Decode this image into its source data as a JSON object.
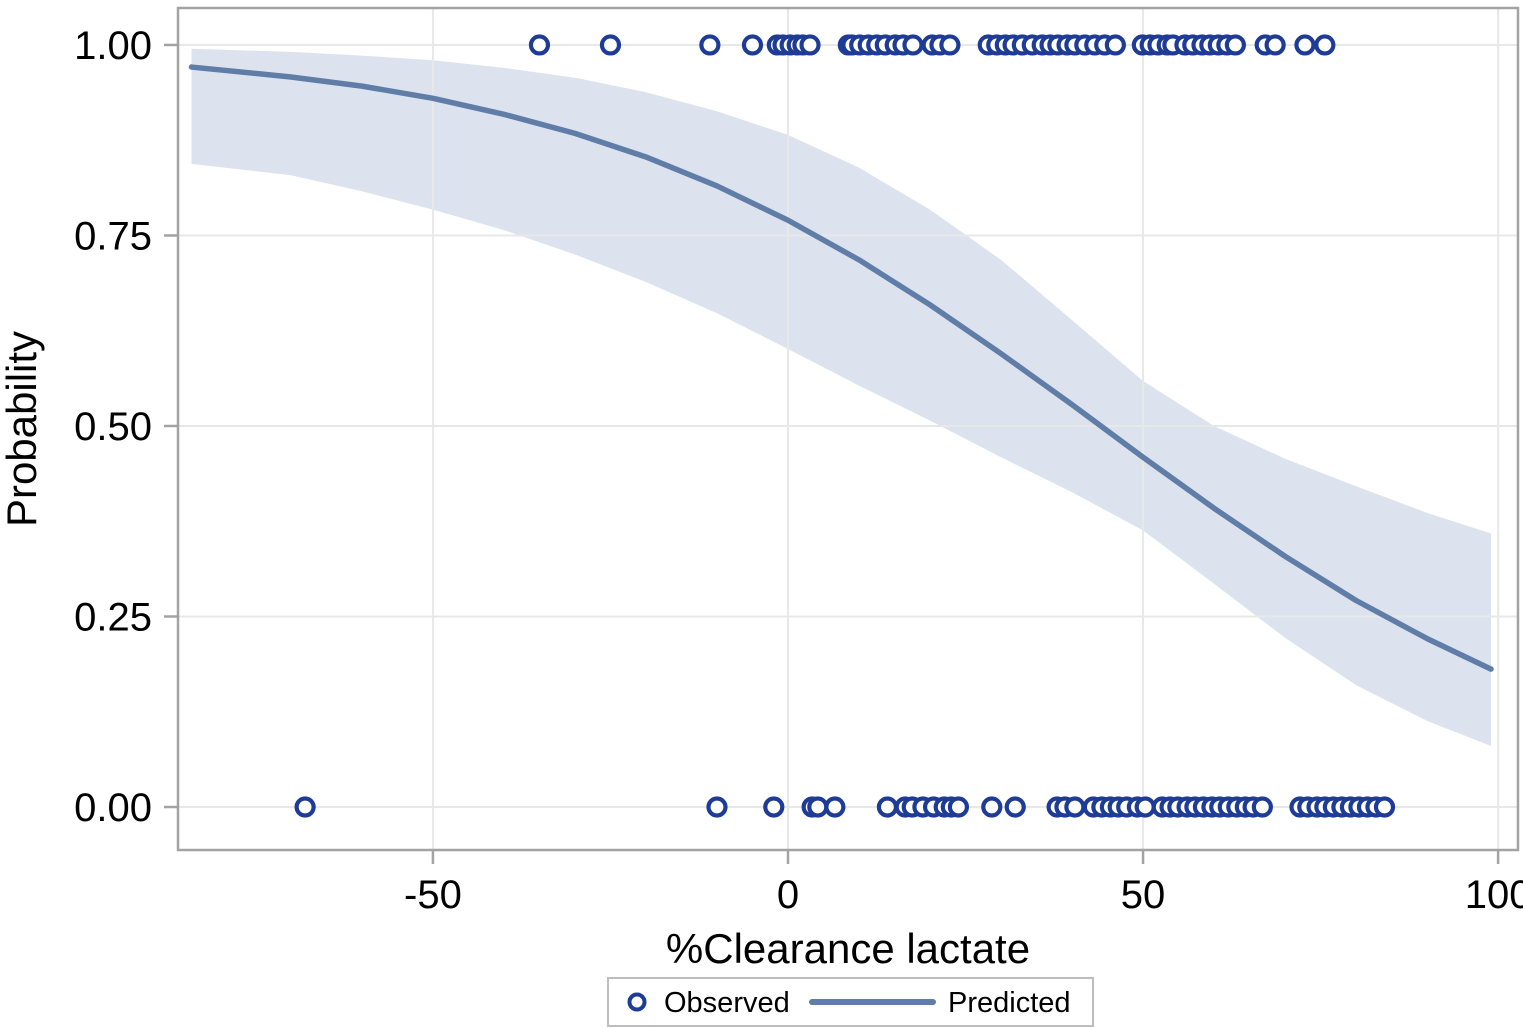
{
  "chart_data": {
    "type": "scatter",
    "title": "",
    "xlabel": "%Clearance lactate",
    "ylabel": "Probability",
    "xlim": [
      -85.9,
      102.8
    ],
    "ylim": [
      -0.0564,
      1.0485
    ],
    "x_tick_values": [
      -50,
      0,
      50,
      100
    ],
    "x_tick_labels": [
      "-50",
      "0",
      "50",
      "100"
    ],
    "y_tick_values": [
      0,
      0.25,
      0.5,
      0.75,
      1.0
    ],
    "y_tick_labels": [
      "0.00",
      "0.25",
      "0.50",
      "0.75",
      "1.00"
    ],
    "grid": true,
    "legend_position": "bottom-center",
    "legend": [
      {
        "label": "Observed",
        "type": "marker"
      },
      {
        "label": "Predicted",
        "type": "line"
      }
    ],
    "series": [
      {
        "name": "Observed (event = 1)",
        "type": "scatter",
        "y_value": 1.0,
        "x": [
          -35,
          -25,
          -11,
          -5,
          -1.5,
          -0.7,
          0.3,
          1.3,
          2.1,
          3.1,
          8.5,
          9.0,
          10.1,
          11.3,
          12.5,
          13.7,
          15.1,
          16.2,
          17.6,
          20.3,
          21.4,
          22.8,
          28.2,
          29.4,
          30.6,
          31.7,
          33.0,
          34.4,
          35.8,
          36.9,
          38.0,
          39.3,
          40.4,
          41.8,
          43.2,
          44.6,
          46.1,
          49.9,
          51.0,
          52.1,
          53.4,
          54.2,
          55.9,
          57.0,
          58.3,
          59.4,
          60.6,
          61.8,
          63.0,
          67.2,
          68.6,
          72.8,
          75.6
        ]
      },
      {
        "name": "Observed (event = 0)",
        "type": "scatter",
        "y_value": 0.0,
        "x": [
          -68,
          -10,
          -2,
          3.4,
          4.2,
          6.6,
          14.0,
          16.5,
          17.5,
          19.0,
          20.5,
          22.0,
          23.0,
          24.0,
          28.7,
          32.0,
          37.9,
          39.0,
          40.4,
          43.0,
          44.2,
          45.4,
          46.5,
          47.7,
          49.2,
          50.3,
          52.7,
          53.8,
          54.9,
          56.2,
          57.3,
          58.5,
          59.7,
          60.8,
          62.0,
          63.2,
          64.4,
          65.5,
          66.8,
          72.1,
          73.2,
          74.5,
          75.6,
          76.8,
          78.0,
          79.2,
          80.4,
          81.6,
          82.8,
          84.0
        ]
      },
      {
        "name": "Predicted",
        "type": "line",
        "x": [
          -84,
          -70,
          -60,
          -50,
          -40,
          -30,
          -20,
          -10,
          0,
          10,
          20,
          30,
          40,
          50,
          60,
          70,
          80,
          90,
          99
        ],
        "y": [
          0.971,
          0.958,
          0.946,
          0.93,
          0.909,
          0.884,
          0.853,
          0.815,
          0.77,
          0.718,
          0.659,
          0.595,
          0.528,
          0.459,
          0.392,
          0.329,
          0.271,
          0.221,
          0.181
        ]
      },
      {
        "name": "Confidence band",
        "type": "area",
        "x": [
          -84,
          -70,
          -60,
          -50,
          -40,
          -30,
          -20,
          -10,
          0,
          10,
          20,
          30,
          40,
          50,
          60,
          70,
          80,
          90,
          99
        ],
        "upper": [
          0.995,
          0.991,
          0.986,
          0.98,
          0.97,
          0.957,
          0.938,
          0.913,
          0.882,
          0.839,
          0.784,
          0.718,
          0.639,
          0.559,
          0.5,
          0.457,
          0.421,
          0.386,
          0.359
        ],
        "lower": [
          0.844,
          0.829,
          0.808,
          0.784,
          0.757,
          0.725,
          0.689,
          0.648,
          0.601,
          0.553,
          0.507,
          0.459,
          0.413,
          0.363,
          0.293,
          0.222,
          0.16,
          0.113,
          0.08
        ]
      }
    ],
    "colors": {
      "marker": "#1e3c96",
      "line": "#5f7da7",
      "band": "#dce3ef",
      "grid": "#e8e8e8",
      "frame": "#a3a3a3",
      "legend_border": "#bdbdbd",
      "text": "#000000",
      "background": "#ffffff"
    }
  }
}
